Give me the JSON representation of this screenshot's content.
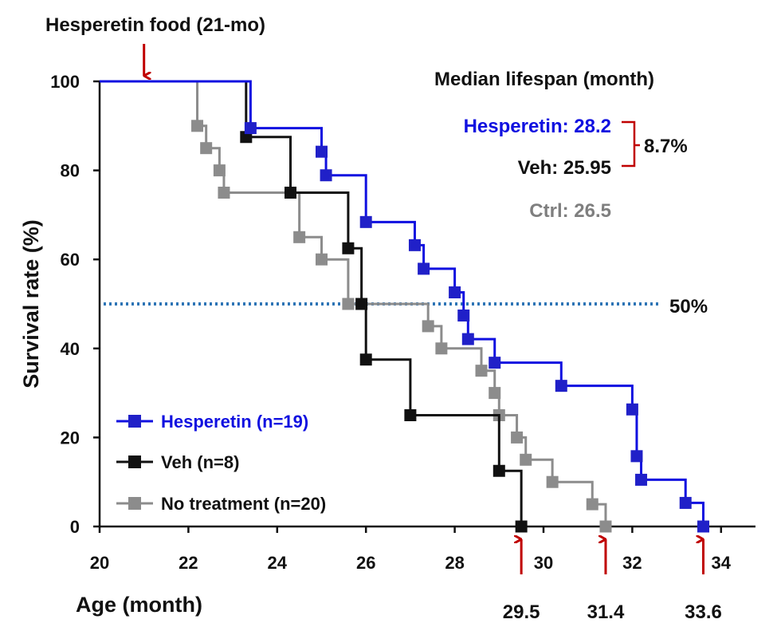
{
  "chart_data": {
    "type": "line",
    "subtype": "kaplan-meier survival (step)",
    "xlabel": "Age (month)",
    "ylabel": "Survival rate (%)",
    "xlim": [
      20,
      35
    ],
    "ylim": [
      0,
      100
    ],
    "x_ticks": [
      "20",
      "22",
      "24",
      "26",
      "28",
      "30",
      "32",
      "34"
    ],
    "y_ticks": [
      "0",
      "20",
      "40",
      "60",
      "80",
      "100"
    ],
    "grid": false,
    "legend_position": "bottom-left",
    "treatment": {
      "label": "Hesperetin food (21-mo)",
      "x": 21
    },
    "reference_line": {
      "y": 50,
      "label": "50%",
      "color": "#2E75B6",
      "style": "dotted"
    },
    "median_lifespan": {
      "title": "Median lifespan (month)",
      "items": [
        {
          "label": "Hesperetin: 28.2",
          "color": "#1010E0"
        },
        {
          "label": "Veh: 25.95",
          "color": "#111111"
        },
        {
          "label": "Ctrl: 26.5",
          "color": "#7F7F7F"
        }
      ],
      "difference_label": "8.7%",
      "bracket_color": "#C00000"
    },
    "max_lifespan_markers": [
      {
        "x": 29.5,
        "label": "29.5"
      },
      {
        "x": 31.4,
        "label": "31.4"
      },
      {
        "x": 33.6,
        "label": "33.6"
      }
    ],
    "marker_arrow_color": "#C00000",
    "series": [
      {
        "name": "Hesperetin (n=19)",
        "color": "#1010E0",
        "text_color": "#1010E0",
        "marker_color": "#2020C8",
        "start": 20,
        "points": [
          [
            23.4,
            89.5
          ],
          [
            25.0,
            84.2
          ],
          [
            25.1,
            78.9
          ],
          [
            26.0,
            68.4
          ],
          [
            27.1,
            63.2
          ],
          [
            27.3,
            57.9
          ],
          [
            28.0,
            52.6
          ],
          [
            28.2,
            47.4
          ],
          [
            28.3,
            42.1
          ],
          [
            28.9,
            36.8
          ],
          [
            30.4,
            31.6
          ],
          [
            32.0,
            26.3
          ],
          [
            32.1,
            15.8
          ],
          [
            32.2,
            10.5
          ],
          [
            33.2,
            5.3
          ],
          [
            33.6,
            0
          ]
        ]
      },
      {
        "name": "Veh (n=8)",
        "color": "#111111",
        "text_color": "#111111",
        "marker_color": "#111111",
        "start": 20,
        "points": [
          [
            23.3,
            87.5
          ],
          [
            24.3,
            75.0
          ],
          [
            25.6,
            62.5
          ],
          [
            25.9,
            50.0
          ],
          [
            26.0,
            37.5
          ],
          [
            27.0,
            25.0
          ],
          [
            29.0,
            12.5
          ],
          [
            29.5,
            0
          ]
        ]
      },
      {
        "name": "No treatment (n=20)",
        "color": "#8C8C8C",
        "text_color": "#111111",
        "marker_color": "#8C8C8C",
        "start": 20,
        "points": [
          [
            22.2,
            90
          ],
          [
            22.4,
            85
          ],
          [
            22.7,
            80
          ],
          [
            22.8,
            75
          ],
          [
            24.5,
            65
          ],
          [
            25.0,
            60
          ],
          [
            25.6,
            50
          ],
          [
            27.4,
            45
          ],
          [
            27.7,
            40
          ],
          [
            28.6,
            35
          ],
          [
            28.9,
            30
          ],
          [
            29.0,
            25
          ],
          [
            29.4,
            20
          ],
          [
            29.6,
            15
          ],
          [
            30.2,
            10
          ],
          [
            31.1,
            5
          ],
          [
            31.4,
            0
          ]
        ]
      }
    ]
  }
}
